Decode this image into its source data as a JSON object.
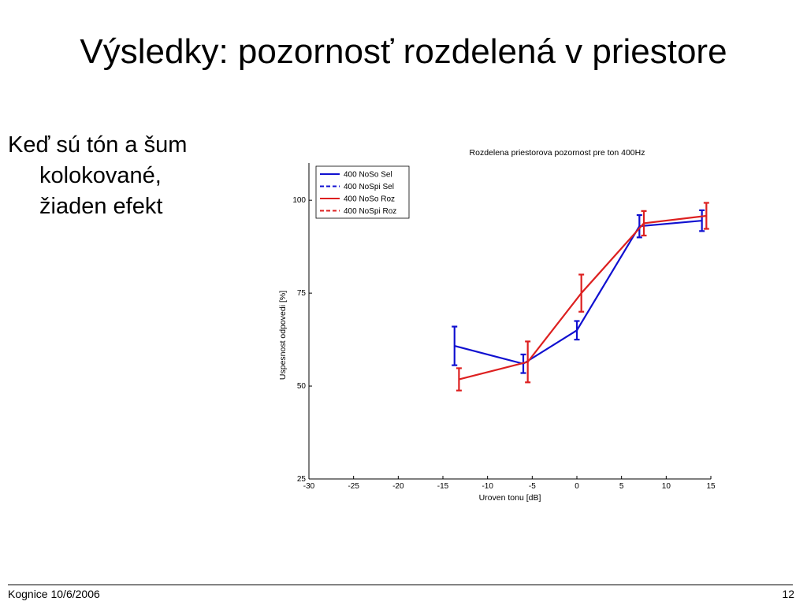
{
  "slide": {
    "title": "Výsledky: pozornosť rozdelená v priestore",
    "bullet_lines": [
      "Keď sú tón a šum",
      "kolokované,",
      "žiaden efekt"
    ],
    "footer_left": "Kognice 10/6/2006",
    "footer_right": "12"
  },
  "chart_data": {
    "type": "line",
    "title": "Rozdelena priestorova pozornost pre ton 400Hz",
    "xlabel": "Uroven tonu [dB]",
    "ylabel": "Uspesnost odpovedi [%]",
    "xlim": [
      -30,
      15
    ],
    "ylim": [
      25,
      110
    ],
    "xticks": [
      -30,
      -25,
      -20,
      -15,
      -10,
      -5,
      0,
      5,
      10,
      15
    ],
    "yticks": [
      25,
      50,
      75,
      100
    ],
    "legend_position": "top-left",
    "grid": false,
    "series": [
      {
        "name": "400 NoSo Sel",
        "color": "#1010d0",
        "dashed": false,
        "x": [
          -13.7,
          -6,
          0,
          7,
          14
        ],
        "y": [
          60.8,
          56,
          65,
          93,
          94.5
        ],
        "err": [
          5.2,
          2.5,
          2.5,
          3,
          2.8
        ]
      },
      {
        "name": "400 NoSpi Sel",
        "color": "#1010d0",
        "dashed": true,
        "x": [],
        "y": [],
        "err": []
      },
      {
        "name": "400 NoSo Roz",
        "color": "#dd2020",
        "dashed": false,
        "x": [
          -13.2,
          -5.5,
          0.5,
          7.5,
          14.5
        ],
        "y": [
          51.8,
          56.5,
          75,
          93.8,
          95.8
        ],
        "err": [
          3,
          5.5,
          5,
          3.3,
          3.5
        ]
      },
      {
        "name": "400 NoSpi Roz",
        "color": "#dd2020",
        "dashed": true,
        "x": [],
        "y": [],
        "err": []
      }
    ]
  }
}
